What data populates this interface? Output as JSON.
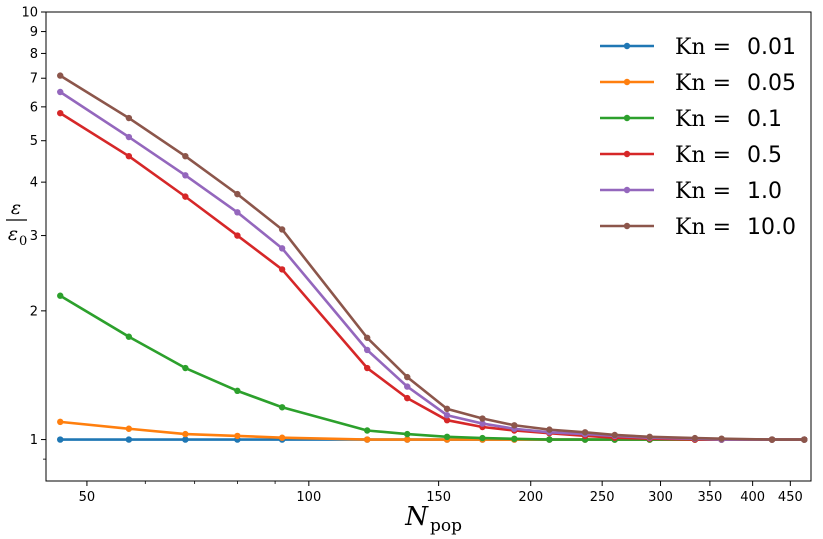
{
  "chart_data": {
    "type": "line",
    "xlabel": "N",
    "xlabel_sub": "pop",
    "ylabel_num": "ε",
    "ylabel_den": "ε",
    "ylabel_den_sub": "0",
    "xscale": "log",
    "yscale": "log",
    "xlim": [
      44,
      480
    ],
    "ylim": [
      0.8,
      10
    ],
    "xticks": [
      50,
      100,
      150,
      200,
      250,
      300,
      350,
      400,
      450
    ],
    "xtick_labels": [
      "50",
      "100",
      "150",
      "200",
      "250",
      "300",
      "350",
      "400",
      "450"
    ],
    "yticks": [
      1,
      2,
      3,
      4,
      5,
      6,
      7,
      8,
      9,
      10
    ],
    "ytick_labels": [
      "1",
      "2",
      "3",
      "4",
      "5",
      "6",
      "7",
      "8",
      "9",
      "10"
    ],
    "grid": false,
    "legend_position": "top-right",
    "legend_prefix": "Kn =",
    "x": [
      46,
      57,
      68,
      80,
      92,
      120,
      136,
      154,
      172,
      190,
      212,
      237,
      260,
      290,
      334,
      363,
      425,
      470
    ],
    "series": [
      {
        "name": "0.01",
        "color": "#1f77b4",
        "values": [
          1.0,
          1.0,
          1.0,
          1.0,
          1.0,
          1.0,
          1.0,
          1.0,
          1.0,
          1.0,
          1.0,
          1.0,
          1.0,
          1.0,
          1.0,
          1.0,
          1.0,
          1.0
        ]
      },
      {
        "name": "0.05",
        "color": "#ff7f0e",
        "values": [
          1.1,
          1.06,
          1.03,
          1.02,
          1.01,
          1.0,
          1.0,
          1.0,
          1.0,
          1.0,
          1.0,
          1.0,
          1.0,
          1.0,
          1.0,
          1.0,
          1.0,
          1.0
        ]
      },
      {
        "name": "0.1",
        "color": "#2ca02c",
        "values": [
          2.17,
          1.74,
          1.47,
          1.3,
          1.19,
          1.05,
          1.03,
          1.015,
          1.008,
          1.004,
          1.0,
          1.0,
          1.0,
          1.0,
          1.0,
          1.0,
          1.0,
          1.0
        ]
      },
      {
        "name": "0.5",
        "color": "#d62728",
        "values": [
          5.8,
          4.6,
          3.7,
          3.0,
          2.5,
          1.47,
          1.25,
          1.11,
          1.07,
          1.05,
          1.035,
          1.02,
          1.01,
          1.005,
          1.0,
          1.0,
          1.0,
          1.0
        ]
      },
      {
        "name": "1.0",
        "color": "#9467bd",
        "values": [
          6.5,
          5.1,
          4.15,
          3.4,
          2.8,
          1.62,
          1.33,
          1.14,
          1.09,
          1.06,
          1.04,
          1.03,
          1.02,
          1.01,
          1.005,
          1.0,
          1.0,
          1.0
        ]
      },
      {
        "name": "10.0",
        "color": "#8c564b",
        "values": [
          7.1,
          5.65,
          4.6,
          3.75,
          3.1,
          1.73,
          1.4,
          1.18,
          1.12,
          1.08,
          1.055,
          1.04,
          1.025,
          1.015,
          1.008,
          1.005,
          1.0,
          1.0
        ]
      }
    ]
  }
}
